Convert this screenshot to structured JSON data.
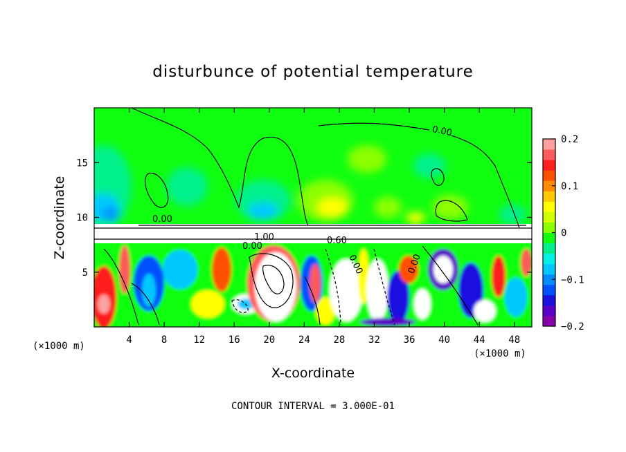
{
  "chart_data": {
    "type": "heatmap",
    "title": "disturbunce of potential temperature",
    "xlabel": "X-coordinate",
    "ylabel": "Z-coordinate",
    "x_unit_left": "(×1000 m)",
    "x_unit_right": "(×1000 m)",
    "xlim": [
      0,
      50
    ],
    "ylim": [
      0,
      20
    ],
    "x_ticks": [
      4,
      8,
      12,
      16,
      20,
      24,
      28,
      32,
      36,
      40,
      44,
      48
    ],
    "y_ticks": [
      5,
      10,
      15
    ],
    "colorbar": {
      "range": [
        -0.2,
        0.2
      ],
      "tick_labels": [
        "0.2",
        "0.1",
        "0",
        "−0.1",
        "−0.2"
      ],
      "tick_values": [
        0.2,
        0.1,
        0,
        -0.1,
        -0.2
      ],
      "colors": [
        "#8800aa",
        "#5a00c8",
        "#1a10e0",
        "#0050ff",
        "#008cff",
        "#00c8ff",
        "#00f0e6",
        "#00f08c",
        "#10ff10",
        "#8cff00",
        "#d2ff00",
        "#ffff00",
        "#ffc800",
        "#ff8c00",
        "#ff5000",
        "#ff1e1e",
        "#ff5a5a",
        "#ffa0a0"
      ]
    },
    "contour_labels": [
      "0.00",
      "0.00",
      "1.00",
      "0.60",
      "0.00",
      "0.00",
      "0.00"
    ],
    "annotation": "CONTOUR INTERVAL = 3.000E-01"
  }
}
